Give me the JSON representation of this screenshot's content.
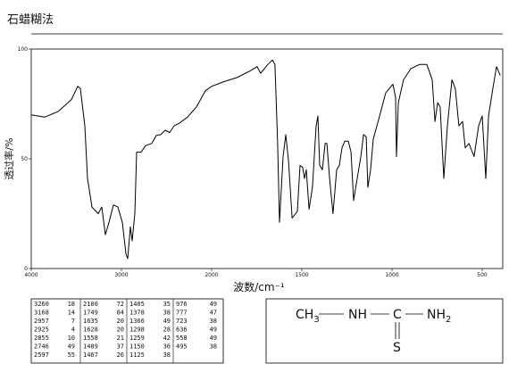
{
  "chart_data": {
    "type": "line",
    "title": "石蜡糊法",
    "x_label": "波数/cm⁻¹",
    "y_label": "透过率/%",
    "xlim": [
      4000,
      400
    ],
    "ylim": [
      0,
      100
    ],
    "xticks": [
      4000,
      3000,
      2000,
      1500,
      1000,
      500
    ],
    "yticks": [
      0,
      50,
      100
    ],
    "series": [
      {
        "color": "#000000",
        "x": [
          4000,
          3851,
          3703,
          3554,
          3485,
          3455,
          3406,
          3376,
          3327,
          3257,
          3218,
          3178,
          3139,
          3089,
          3040,
          2990,
          2950,
          2931,
          2901,
          2881,
          2851,
          2832,
          2782,
          2733,
          2663,
          2614,
          2564,
          2515,
          2465,
          2416,
          2366,
          2267,
          2168,
          2069,
          2000,
          1936,
          1861,
          1787,
          1748,
          1728,
          1688,
          1663,
          1649,
          1634,
          1624,
          1604,
          1589,
          1574,
          1554,
          1525,
          1510,
          1495,
          1485,
          1475,
          1460,
          1441,
          1421,
          1411,
          1401,
          1386,
          1371,
          1361,
          1346,
          1327,
          1307,
          1292,
          1277,
          1262,
          1242,
          1227,
          1213,
          1193,
          1173,
          1158,
          1143,
          1134,
          1119,
          1104,
          1069,
          1035,
          995,
          980,
          975,
          965,
          936,
          896,
          847,
          807,
          777,
          762,
          747,
          733,
          713,
          693,
          668,
          649,
          629,
          609,
          594,
          574,
          545,
          520,
          500,
          480,
          465,
          441,
          421,
          400
        ],
        "values": [
          70,
          69,
          71.5,
          77,
          83,
          82,
          65,
          41,
          28,
          25,
          28,
          15.4,
          21,
          29,
          28,
          21,
          6.5,
          4.5,
          19,
          12.6,
          25,
          53,
          53,
          56,
          57,
          60.6,
          61,
          63,
          62,
          65,
          66,
          69,
          73.6,
          81,
          83,
          85,
          87,
          90,
          92,
          89,
          93,
          95,
          93,
          57,
          21,
          51,
          61,
          49,
          23,
          26,
          47,
          46,
          41,
          45,
          27,
          37,
          65,
          69.5,
          47,
          45,
          57,
          57,
          41,
          25,
          45,
          47,
          55,
          58,
          58,
          53,
          31,
          41,
          51,
          61,
          60,
          37,
          45,
          59,
          69.5,
          80,
          84,
          78,
          51,
          75.6,
          86,
          91,
          93,
          93,
          86,
          67,
          75.6,
          73.6,
          41,
          65,
          86,
          82,
          65,
          67,
          55,
          57,
          51,
          65,
          69.5,
          41,
          69.5,
          82,
          92,
          88
        ]
      }
    ]
  },
  "peak_table": [
    [
      [
        "3260",
        "18"
      ],
      [
        "3168",
        "14"
      ],
      [
        "2957",
        "7"
      ],
      [
        "2925",
        "4"
      ],
      [
        "2855",
        "10"
      ],
      [
        "2746",
        "49"
      ],
      [
        "2597",
        "55"
      ]
    ],
    [
      [
        "2100",
        "72"
      ],
      [
        "1749",
        "84"
      ],
      [
        "1635",
        "20"
      ],
      [
        "1628",
        "20"
      ],
      [
        "1558",
        "21"
      ],
      [
        "1489",
        "37"
      ],
      [
        "1467",
        "26"
      ]
    ],
    [
      [
        "1405",
        "35"
      ],
      [
        "1378",
        "38"
      ],
      [
        "1366",
        "49"
      ],
      [
        "1298",
        "28"
      ],
      [
        "1259",
        "42"
      ],
      [
        "1150",
        "36"
      ],
      [
        "1125",
        "38"
      ]
    ],
    [
      [
        "976",
        "49"
      ],
      [
        "777",
        "47"
      ],
      [
        "723",
        "38"
      ],
      [
        "636",
        "49"
      ],
      [
        "558",
        "49"
      ],
      [
        "495",
        "38"
      ]
    ]
  ],
  "structure": {
    "groups": [
      {
        "main": "CH",
        "sub": "3"
      },
      {
        "main": "NH"
      },
      {
        "main": "C"
      },
      {
        "main": "NH",
        "sub": "2"
      }
    ],
    "double_bond_atom": "S"
  }
}
